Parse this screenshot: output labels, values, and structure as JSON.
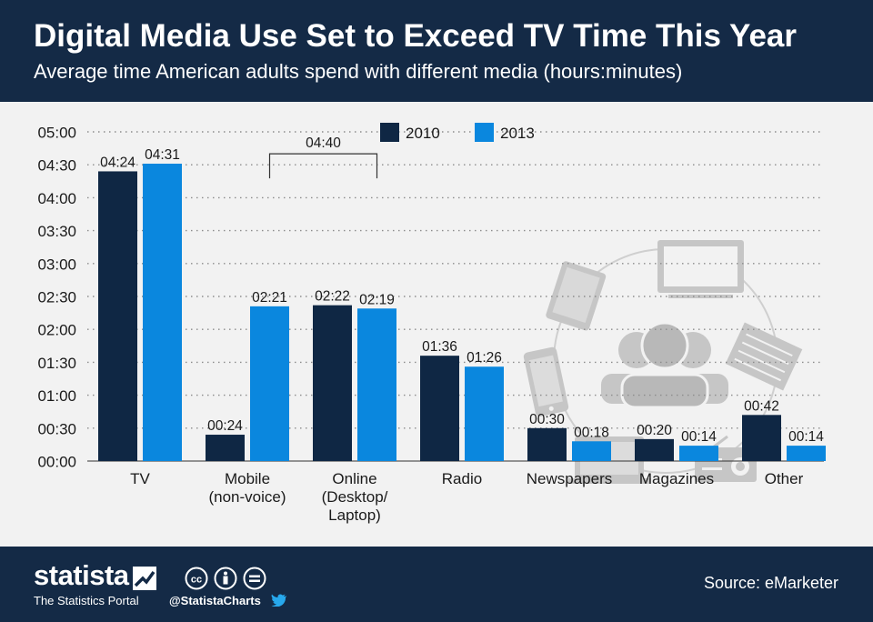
{
  "header": {
    "title": "Digital Media Use Set to Exceed TV Time This Year",
    "subtitle": "Average time American adults spend with different media (hours:minutes)"
  },
  "colors": {
    "header_bg": "#142a46",
    "series_2010": "#0f2744",
    "series_2013": "#0a87de",
    "grid": "#8c8c8c",
    "icons": "#c6c6c6"
  },
  "chart_data": {
    "type": "bar",
    "categories": [
      [
        "TV"
      ],
      [
        "Mobile",
        "(non-voice)"
      ],
      [
        "Online",
        "(Desktop/",
        "Laptop)"
      ],
      [
        "Radio"
      ],
      [
        "Newspapers"
      ],
      [
        "Magazines"
      ],
      [
        "Other"
      ]
    ],
    "series": [
      {
        "name": "2010",
        "values": [
          264,
          24,
          142,
          96,
          30,
          20,
          42
        ],
        "labels": [
          "04:24",
          "00:24",
          "02:22",
          "01:36",
          "00:30",
          "00:20",
          "00:42"
        ]
      },
      {
        "name": "2013",
        "values": [
          271,
          141,
          139,
          86,
          18,
          14,
          14
        ],
        "labels": [
          "04:31",
          "02:21",
          "02:19",
          "01:26",
          "00:18",
          "00:14",
          "00:14"
        ]
      }
    ],
    "y_unit": "minutes",
    "ylim": [
      0,
      300
    ],
    "yticks": [
      0,
      30,
      60,
      90,
      120,
      150,
      180,
      210,
      240,
      270,
      300
    ],
    "ytick_labels": [
      "00:00",
      "00:30",
      "01:00",
      "01:30",
      "02:00",
      "02:30",
      "03:00",
      "03:30",
      "04:00",
      "04:30",
      "05:00"
    ],
    "grid": true,
    "legend": "top-center",
    "annotation": {
      "text": "04:40",
      "value": 280,
      "spans": [
        "Mobile 2013",
        "Online 2013"
      ]
    }
  },
  "illustration": {
    "icons": [
      "tablet-icon",
      "tv-icon",
      "newspaper-icon",
      "smartphone-icon",
      "audience-icon",
      "laptop-icon",
      "radio-icon"
    ]
  },
  "footer": {
    "brand": "statista",
    "tagline": "The Statistics Portal",
    "handle": "@StatistaCharts",
    "source": "Source: eMarketer"
  }
}
